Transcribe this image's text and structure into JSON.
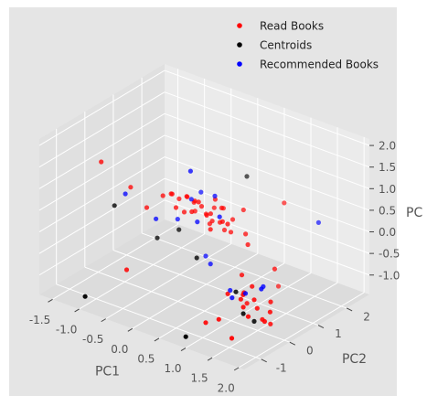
{
  "chart_data": {
    "type": "scatter",
    "projection": "3d",
    "xlabel": "PC1",
    "ylabel": "PC2",
    "zlabel": "PC",
    "xlim": [
      -1.75,
      2.1
    ],
    "ylim": [
      -1.6,
      2.8
    ],
    "zlim": [
      -1.45,
      2.15
    ],
    "xticks": [
      "-1.5",
      "-1.0",
      "-0.5",
      "0.0",
      "0.5",
      "1.0",
      "1.5",
      "2.0"
    ],
    "yticks": [
      "-1",
      "0",
      "1",
      "2"
    ],
    "zticks": [
      "-1.0",
      "-0.5",
      "0.0",
      "0.5",
      "1.0",
      "1.5",
      "2.0"
    ],
    "legend_position": "top-right",
    "grid": true,
    "series": [
      {
        "name": "Read Books",
        "color": "#ff0000",
        "points": [
          [
            -1.55,
            0.2,
            1.0
          ],
          [
            -1.05,
            0.3,
            0.6
          ],
          [
            -0.75,
            -0.4,
            -0.9
          ],
          [
            -0.8,
            0.4,
            0.2
          ],
          [
            -0.55,
            0.5,
            0.55
          ],
          [
            -0.45,
            0.6,
            0.6
          ],
          [
            -0.35,
            0.45,
            0.7
          ],
          [
            -0.3,
            0.6,
            0.55
          ],
          [
            -0.25,
            0.4,
            0.45
          ],
          [
            -0.2,
            0.7,
            0.6
          ],
          [
            -0.15,
            0.5,
            0.35
          ],
          [
            -0.1,
            0.75,
            0.5
          ],
          [
            -0.05,
            0.4,
            0.8
          ],
          [
            0.0,
            0.6,
            0.4
          ],
          [
            0.05,
            0.5,
            0.7
          ],
          [
            0.1,
            0.3,
            0.55
          ],
          [
            0.1,
            0.8,
            0.3
          ],
          [
            0.15,
            0.55,
            0.6
          ],
          [
            0.2,
            0.9,
            0.45
          ],
          [
            0.2,
            0.35,
            0.8
          ],
          [
            0.25,
            0.65,
            0.2
          ],
          [
            0.3,
            0.45,
            0.5
          ],
          [
            0.3,
            0.75,
            0.75
          ],
          [
            0.35,
            0.55,
            0.35
          ],
          [
            0.4,
            0.4,
            0.6
          ],
          [
            0.4,
            0.85,
            0.55
          ],
          [
            0.45,
            0.3,
            0.3
          ],
          [
            0.5,
            0.6,
            0.7
          ],
          [
            0.5,
            0.7,
            0.15
          ],
          [
            0.55,
            0.45,
            0.45
          ],
          [
            0.6,
            0.8,
            0.4
          ],
          [
            0.65,
            0.35,
            0.55
          ],
          [
            0.7,
            0.55,
            0.25
          ],
          [
            0.75,
            0.9,
            0.65
          ],
          [
            0.8,
            0.25,
            0.6
          ],
          [
            0.95,
            0.6,
            0.3
          ],
          [
            1.1,
            0.4,
            0.2
          ],
          [
            1.3,
            1.3,
            0.9
          ],
          [
            1.2,
            0.0,
            -0.3
          ],
          [
            1.15,
            -0.4,
            -0.6
          ],
          [
            1.35,
            -0.1,
            -0.85
          ],
          [
            1.4,
            -0.3,
            -0.5
          ],
          [
            1.45,
            -0.5,
            -0.55
          ],
          [
            1.5,
            -0.2,
            -0.35
          ],
          [
            1.55,
            -0.6,
            -0.65
          ],
          [
            1.6,
            -0.7,
            -0.3
          ],
          [
            1.65,
            -0.3,
            -0.75
          ],
          [
            1.7,
            -0.5,
            -0.45
          ],
          [
            1.75,
            -0.8,
            -0.7
          ],
          [
            1.8,
            -0.4,
            -0.9
          ],
          [
            1.85,
            -0.2,
            -0.55
          ],
          [
            1.9,
            -0.3,
            -1.0
          ],
          [
            1.95,
            -0.6,
            -0.8
          ],
          [
            2.0,
            -0.5,
            -0.6
          ],
          [
            1.25,
            -0.9,
            -0.95
          ],
          [
            0.95,
            -0.8,
            -1.2
          ],
          [
            1.6,
            -1.1,
            -1.15
          ],
          [
            1.3,
            1.1,
            -0.95
          ],
          [
            1.55,
            0.5,
            -0.2
          ]
        ]
      },
      {
        "name": "Centroids",
        "color": "#000000",
        "points": [
          [
            -1.3,
            0.2,
            0.1
          ],
          [
            -0.55,
            0.3,
            -0.35
          ],
          [
            -0.25,
            0.5,
            -0.1
          ],
          [
            0.6,
            1.3,
            1.2
          ],
          [
            1.25,
            -0.3,
            -0.55
          ],
          [
            1.55,
            -0.6,
            -0.8
          ],
          [
            1.7,
            -0.5,
            -0.95
          ],
          [
            0.95,
            -1.5,
            -1.25
          ],
          [
            -1.05,
            -1.3,
            -1.3
          ],
          [
            0.3,
            0.1,
            -0.35
          ]
        ]
      },
      {
        "name": "Recommended Books",
        "color": "#0000ff",
        "points": [
          [
            -1.15,
            0.3,
            0.4
          ],
          [
            -0.6,
            0.35,
            0.05
          ],
          [
            -0.3,
            0.55,
            0.1
          ],
          [
            -0.15,
            0.75,
            0.55
          ],
          [
            0.05,
            0.35,
            1.45
          ],
          [
            0.4,
            0.55,
            0.95
          ],
          [
            0.65,
            0.25,
            0.7
          ],
          [
            0.2,
            0.6,
            -0.55
          ],
          [
            0.45,
            0.3,
            -0.5
          ],
          [
            0.9,
            0.15,
            -0.85
          ],
          [
            1.15,
            -0.25,
            -0.75
          ],
          [
            1.35,
            -0.15,
            -0.6
          ],
          [
            1.55,
            0.1,
            -0.45
          ],
          [
            2.0,
            1.2,
            0.8
          ],
          [
            1.7,
            -0.25,
            -0.3
          ],
          [
            -0.05,
            0.9,
            0.7
          ],
          [
            0.15,
            0.4,
            0.3
          ]
        ]
      }
    ]
  }
}
